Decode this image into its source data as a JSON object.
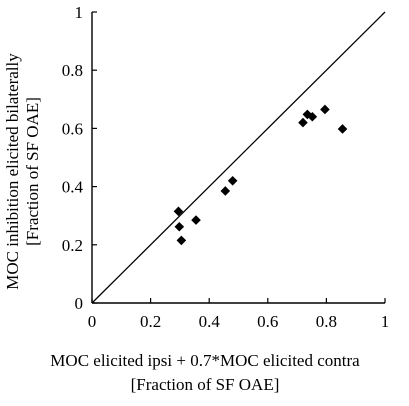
{
  "chart_data": {
    "type": "scatter",
    "title": "",
    "xlabel": [
      "MOC elicited ipsi + 0.7*MOC elicited contra",
      "[Fraction of SF OAE]"
    ],
    "ylabel": [
      "MOC inhibition elicited bilaterally",
      "[Fraction of SF OAE]"
    ],
    "xlim": [
      0,
      1
    ],
    "ylim": [
      0,
      1
    ],
    "x_ticks": [
      0,
      0.2,
      0.4,
      0.6,
      0.8,
      1
    ],
    "y_ticks": [
      0,
      0.2,
      0.4,
      0.6,
      0.8,
      1
    ],
    "x_tick_labels": [
      "0",
      "0.2",
      "0.4",
      "0.6",
      "0.8",
      "1"
    ],
    "y_tick_labels": [
      "0",
      "0.2",
      "0.4",
      "0.6",
      "0.8",
      "1"
    ],
    "grid": false,
    "reference_line": {
      "from": [
        0,
        0
      ],
      "to": [
        1,
        1
      ]
    },
    "marker": "diamond",
    "marker_color": "#000000",
    "series": [
      {
        "points": [
          {
            "x": 0.295,
            "y": 0.315
          },
          {
            "x": 0.298,
            "y": 0.262
          },
          {
            "x": 0.305,
            "y": 0.215
          },
          {
            "x": 0.355,
            "y": 0.285
          },
          {
            "x": 0.455,
            "y": 0.385
          },
          {
            "x": 0.48,
            "y": 0.42
          },
          {
            "x": 0.72,
            "y": 0.62
          },
          {
            "x": 0.735,
            "y": 0.648
          },
          {
            "x": 0.752,
            "y": 0.64
          },
          {
            "x": 0.795,
            "y": 0.665
          },
          {
            "x": 0.855,
            "y": 0.598
          }
        ]
      }
    ]
  }
}
